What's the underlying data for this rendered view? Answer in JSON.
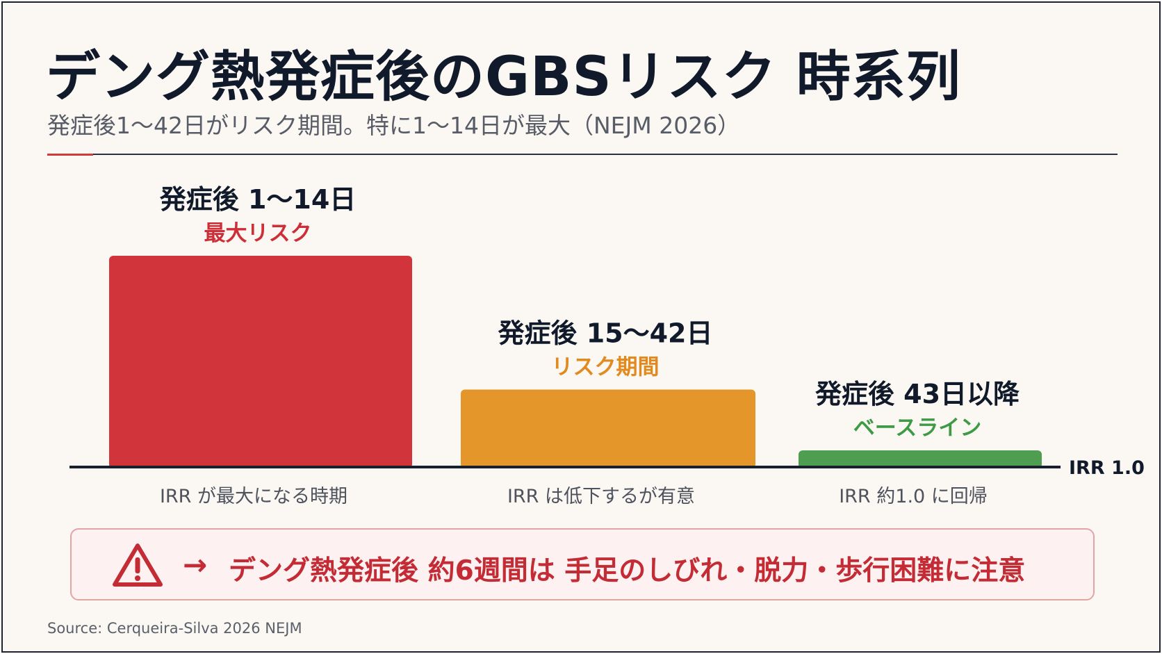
{
  "title": "デング熱発症後のGBSリスク 時系列",
  "subtitle": "発症後1～42日がリスク期間。特に1～14日が最大（NEJM 2026）",
  "chart_data": {
    "type": "bar",
    "categories": [
      "発症後 1～14日",
      "発症後 15～42日",
      "発症後 43日以降"
    ],
    "values": [
      2.6,
      1.5,
      1.0
    ],
    "baseline_value": 1.0,
    "baseline_label": "IRR 1.0",
    "risk_labels": [
      "最大リスク",
      "リスク期間",
      "ベースライン"
    ],
    "descriptions": [
      "IRR が最大になる時期",
      "IRR は低下するが有意",
      "IRR 約1.0 に回帰"
    ],
    "colors": [
      "#d2343b",
      "#e5962a",
      "#4f9d51"
    ],
    "label_colors": [
      "#cd2e37",
      "#e08a20",
      "#3e9a45"
    ]
  },
  "callout": {
    "arrow": "→",
    "text": "デング熱発症後 約6週間は 手足のしびれ・脱力・歩行困難に注意",
    "icon": "warning-triangle-icon"
  },
  "source": "Source: Cerqueira-Silva 2026 NEJM"
}
